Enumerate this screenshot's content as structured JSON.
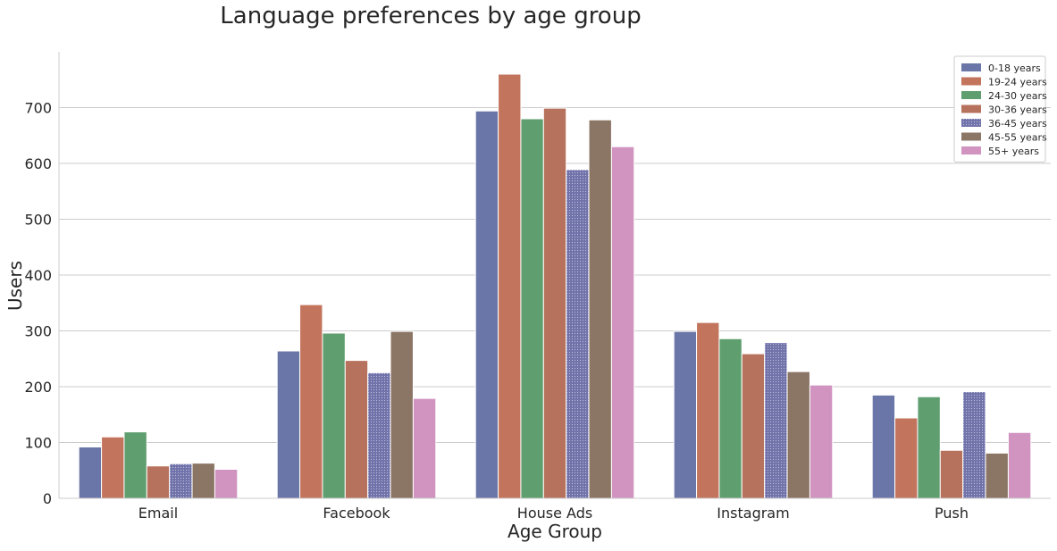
{
  "chart_data": {
    "type": "bar",
    "title": "Language preferences by age group",
    "xlabel": "Age Group",
    "ylabel": "Users",
    "categories": [
      "Email",
      "Facebook",
      "House Ads",
      "Instagram",
      "Push"
    ],
    "ylim": [
      0,
      800
    ],
    "yticks": [
      0,
      100,
      200,
      300,
      400,
      500,
      600,
      700
    ],
    "grid": "horizontal",
    "legend_position": "top-right",
    "series": [
      {
        "name": "0-18 years",
        "color": "#6b76a8",
        "hatch": false,
        "values": [
          92,
          264,
          694,
          299,
          185
        ]
      },
      {
        "name": "19-24 years",
        "color": "#c3745c",
        "hatch": false,
        "values": [
          110,
          347,
          760,
          315,
          144
        ]
      },
      {
        "name": "24-30 years",
        "color": "#5f9e6e",
        "hatch": false,
        "values": [
          119,
          296,
          680,
          286,
          182
        ]
      },
      {
        "name": "30-36 years",
        "color": "#b7725d",
        "hatch": false,
        "values": [
          58,
          247,
          699,
          259,
          86
        ]
      },
      {
        "name": "36-45 years",
        "color": "#7072aa",
        "hatch": true,
        "values": [
          62,
          225,
          589,
          279,
          191
        ]
      },
      {
        "name": "45-55 years",
        "color": "#8b7565",
        "hatch": false,
        "values": [
          63,
          299,
          678,
          227,
          81
        ]
      },
      {
        "name": "55+ years",
        "color": "#d194c1",
        "hatch": false,
        "values": [
          52,
          179,
          630,
          203,
          118
        ]
      }
    ]
  }
}
